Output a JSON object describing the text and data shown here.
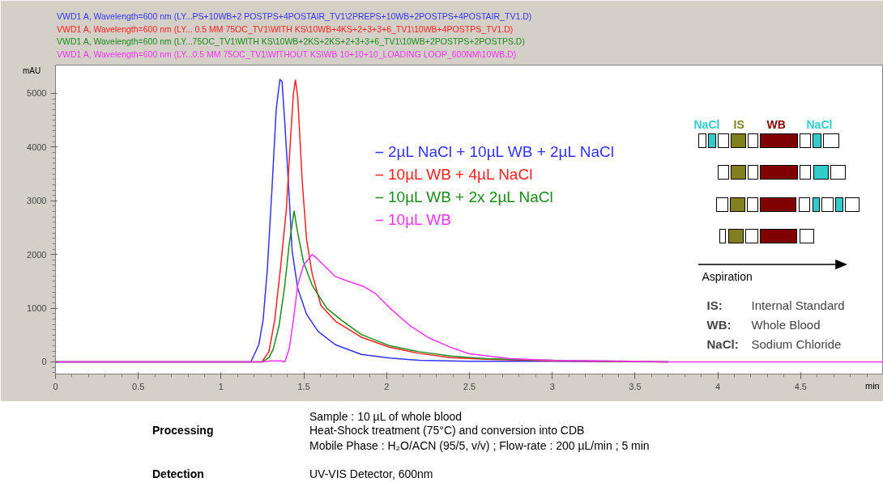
{
  "chart_data": {
    "type": "line",
    "xlabel": "min",
    "ylabel": "mAU",
    "xlim": [
      0,
      5.0
    ],
    "ylim": [
      -226,
      5527
    ],
    "xticks": [
      0,
      0.5,
      1,
      1.5,
      2,
      2.5,
      3,
      3.5,
      4,
      4.5
    ],
    "yticks": [
      0,
      1000,
      2000,
      3000,
      4000,
      5000
    ],
    "grid": false,
    "marker": "none",
    "line_style": "solid",
    "legend": "top",
    "series": [
      {
        "name": "2µL NaCl + 10µL WB + 2µL NaCl",
        "color": "#3333ff",
        "x": [
          0,
          1.18,
          1.228,
          1.254,
          1.28,
          1.307,
          1.333,
          1.355,
          1.368,
          1.385,
          1.411,
          1.429,
          1.463,
          1.516,
          1.585,
          1.69,
          1.847,
          2.02,
          2.195,
          2.5,
          3.0,
          3.7
        ],
        "values": [
          0,
          0,
          320,
          780,
          1750,
          3200,
          4700,
          5260,
          5220,
          4450,
          3100,
          2070,
          1370,
          890,
          570,
          320,
          140,
          70,
          30,
          10,
          10,
          0
        ]
      },
      {
        "name": "10µL WB + 4µL NaCl",
        "color": "#ff2020",
        "x": [
          0,
          1.246,
          1.289,
          1.324,
          1.359,
          1.394,
          1.42,
          1.437,
          1.449,
          1.463,
          1.49,
          1.516,
          1.55,
          1.603,
          1.69,
          1.847,
          2.02,
          2.195,
          2.387,
          2.6,
          3.0,
          3.7
        ],
        "values": [
          0,
          0,
          190,
          780,
          1750,
          2830,
          4180,
          5000,
          5250,
          4930,
          3370,
          2290,
          1640,
          1050,
          760,
          460,
          270,
          160,
          80,
          50,
          20,
          0
        ]
      },
      {
        "name": "10µL WB + 2x 2µL NaCl",
        "color": "#1a8c1a",
        "x": [
          0,
          1.25,
          1.289,
          1.315,
          1.35,
          1.385,
          1.411,
          1.441,
          1.463,
          1.498,
          1.55,
          1.638,
          1.725,
          1.847,
          2.02,
          2.195,
          2.387,
          2.6,
          3.0,
          3.7
        ],
        "values": [
          0,
          0,
          80,
          240,
          670,
          1430,
          2180,
          2810,
          2400,
          1860,
          1430,
          1000,
          780,
          510,
          300,
          190,
          110,
          60,
          30,
          0
        ]
      },
      {
        "name": "10µL WB",
        "color": "#ff33ff",
        "x": [
          0,
          1.25,
          1.3,
          1.36,
          1.385,
          1.411,
          1.437,
          1.463,
          1.498,
          1.55,
          1.585,
          1.69,
          1.76,
          1.864,
          1.934,
          2.02,
          2.143,
          2.247,
          2.387,
          2.5,
          2.75,
          3.0,
          3.5,
          3.7,
          5.0
        ],
        "values": [
          0,
          0,
          20,
          20,
          0,
          240,
          780,
          1430,
          1800,
          2000,
          1910,
          1590,
          1510,
          1400,
          1270,
          1000,
          670,
          460,
          270,
          150,
          60,
          30,
          10,
          0,
          0
        ]
      }
    ],
    "annotations": [
      "VWD1 A, Wavelength=600 nm (LY...PS+10WB+2 POSTPS+4POSTAIR_TV1\\2PREPS+10WB+2POSTPS+4POSTAIR_TV1.D)",
      "VWD1 A, Wavelength=600 nm (LY... 0.5 MM 75OC_TV1\\WITH KS\\10WB+4KS+2+3+3+6_TV1\\10WB+4POSTPS_TV1.D)",
      "VWD1 A, Wavelength=600 nm (LY...75OC_TV1\\WITH KS\\10WB+2KS+2KS+2+3+3+6_TV1\\10WB+2POSTPS+2POSTPS.D)",
      "VWD1 A, Wavelength=600 nm (LY...0.5 MM 75OC_TV1\\WITHOUT KS\\WB 10+10+10_LOADING LOOP_600NM\\10WB.D)",
      "NaCl",
      "IS",
      "WB",
      "NaCl",
      "Aspiration",
      "IS:  Internal Standard",
      "WB:  Whole Blood",
      "NaCl: Sodium Chloride",
      "Processing",
      "Sample :  10 µL of whole blood",
      "Heat-Shock treatment (75°C) and conversion into CDB",
      "Mobile Phase :  H₂O/ACN (95/5, v/v) ;  Flow-rate :  200 µL/min ;  5 min",
      "Detection",
      "UV-VIS Detector, 600nm"
    ]
  }
}
